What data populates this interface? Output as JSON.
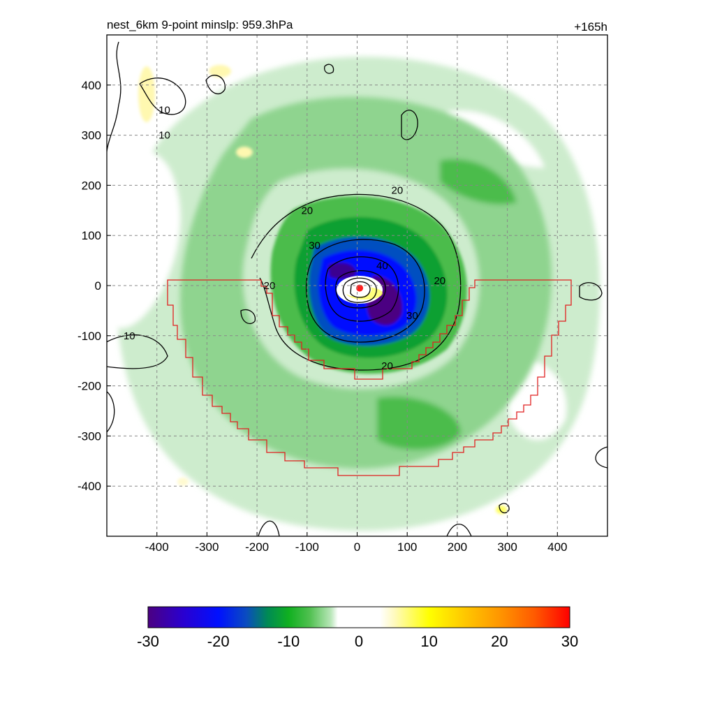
{
  "chart_data": {
    "type": "heatmap",
    "title": "nest_6km  9-point minslp: 959.3hPa",
    "time_label": "+165h",
    "xlabel": "",
    "ylabel": "",
    "xlim": [
      -500,
      500
    ],
    "ylim": [
      -500,
      500
    ],
    "x_ticks": [
      -400,
      -300,
      -200,
      -100,
      0,
      100,
      200,
      300,
      400
    ],
    "y_ticks": [
      400,
      300,
      200,
      100,
      0,
      -100,
      -200,
      -300,
      -400
    ],
    "grid": true,
    "colorbar": {
      "min": -30,
      "max": 30,
      "tick_values": [
        -30,
        -20,
        -10,
        0,
        10,
        20,
        30
      ],
      "tick_labels": [
        "-30",
        "-20",
        "-10",
        "0",
        "10",
        "20",
        "30"
      ],
      "color_stops": [
        {
          "value": -30,
          "color": "#4b0082"
        },
        {
          "value": -25,
          "color": "#2a00d0"
        },
        {
          "value": -20,
          "color": "#0010ff"
        },
        {
          "value": -16,
          "color": "#0a4cc0"
        },
        {
          "value": -13,
          "color": "#008a55"
        },
        {
          "value": -10,
          "color": "#10b020"
        },
        {
          "value": -7,
          "color": "#50c050"
        },
        {
          "value": -4,
          "color": "#b8e6b8"
        },
        {
          "value": -3,
          "color": "#ffffff"
        },
        {
          "value": 3,
          "color": "#ffffff"
        },
        {
          "value": 5,
          "color": "#fffac0"
        },
        {
          "value": 10,
          "color": "#ffff00"
        },
        {
          "value": 15,
          "color": "#ffc800"
        },
        {
          "value": 20,
          "color": "#ff9600"
        },
        {
          "value": 25,
          "color": "#ff5a00"
        },
        {
          "value": 30,
          "color": "#ff0000"
        }
      ]
    },
    "contour_labels": [
      {
        "text": "10",
        "x": -385,
        "y": 300
      },
      {
        "text": "10",
        "x": -385,
        "y": 350
      },
      {
        "text": "10",
        "x": -455,
        "y": -100
      },
      {
        "text": "20",
        "x": -100,
        "y": 150
      },
      {
        "text": "20",
        "x": 80,
        "y": 190
      },
      {
        "text": "20",
        "x": -175,
        "y": 0
      },
      {
        "text": "20",
        "x": 165,
        "y": 10
      },
      {
        "text": "20",
        "x": 60,
        "y": -160
      },
      {
        "text": "30",
        "x": -85,
        "y": 80
      },
      {
        "text": "30",
        "x": 110,
        "y": -60
      },
      {
        "text": "40",
        "x": 50,
        "y": 40
      }
    ],
    "storm_center": {
      "x": 5,
      "y": -5,
      "color": "#ff2020"
    },
    "region_outline_color": "#e02020"
  }
}
